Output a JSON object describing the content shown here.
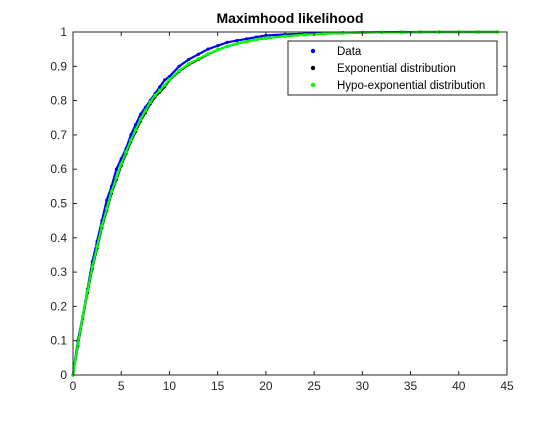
{
  "chart_data": {
    "type": "line",
    "title": "Maximhood likelihood",
    "xlabel": "",
    "ylabel": "",
    "xlim": [
      0,
      45
    ],
    "ylim": [
      0,
      1
    ],
    "x_ticks": [
      0,
      5,
      10,
      15,
      20,
      25,
      30,
      35,
      40,
      45
    ],
    "y_ticks": [
      0,
      0.1,
      0.2,
      0.3,
      0.4,
      0.5,
      0.6,
      0.7,
      0.8,
      0.9,
      1
    ],
    "x_tick_labels": [
      "0",
      "5",
      "10",
      "15",
      "20",
      "25",
      "30",
      "35",
      "40",
      "45"
    ],
    "y_tick_labels": [
      "0",
      "0.1",
      "0.2",
      "0.3",
      "0.4",
      "0.5",
      "0.6",
      "0.7",
      "0.8",
      "0.9",
      "1"
    ],
    "grid": false,
    "legend_position": "top-right",
    "series": [
      {
        "name": "Data",
        "color": "#0000ff",
        "marker": "dot",
        "x": [
          0,
          0.5,
          1,
          1.5,
          2,
          2.5,
          3,
          3.5,
          4,
          4.5,
          5,
          5.5,
          6,
          6.5,
          7,
          7.5,
          8,
          8.5,
          9,
          9.5,
          10,
          11,
          12,
          13,
          14,
          15,
          16,
          17,
          18,
          19,
          20,
          22,
          24,
          26,
          28,
          30,
          32,
          34,
          36,
          38,
          40,
          42,
          44
        ],
        "y": [
          0,
          0.1,
          0.17,
          0.25,
          0.33,
          0.39,
          0.45,
          0.51,
          0.55,
          0.6,
          0.63,
          0.66,
          0.7,
          0.73,
          0.76,
          0.78,
          0.8,
          0.82,
          0.84,
          0.86,
          0.87,
          0.9,
          0.92,
          0.935,
          0.95,
          0.96,
          0.97,
          0.975,
          0.98,
          0.985,
          0.99,
          0.993,
          0.995,
          0.997,
          0.998,
          0.999,
          0.999,
          1,
          1,
          1,
          1,
          1,
          1
        ]
      },
      {
        "name": "Exponential distribution",
        "color": "#000000",
        "marker": "dot",
        "x": [
          0,
          0.5,
          1,
          1.5,
          2,
          2.5,
          3,
          3.5,
          4,
          4.5,
          5,
          5.5,
          6,
          6.5,
          7,
          7.5,
          8,
          8.5,
          9,
          9.5,
          10,
          11,
          12,
          13,
          14,
          15,
          16,
          17,
          18,
          19,
          20,
          22,
          24,
          26,
          28,
          30,
          32,
          34,
          36,
          38,
          40,
          42,
          44
        ],
        "y": [
          0,
          0.085,
          0.165,
          0.24,
          0.31,
          0.37,
          0.43,
          0.48,
          0.53,
          0.57,
          0.61,
          0.645,
          0.68,
          0.71,
          0.74,
          0.765,
          0.79,
          0.81,
          0.825,
          0.84,
          0.86,
          0.885,
          0.905,
          0.92,
          0.935,
          0.948,
          0.958,
          0.966,
          0.972,
          0.978,
          0.982,
          0.988,
          0.992,
          0.995,
          0.997,
          0.998,
          0.999,
          0.999,
          1,
          1,
          1,
          1,
          1
        ]
      },
      {
        "name": "Hypo-exponential distribution",
        "color": "#00ff00",
        "marker": "dot",
        "x": [
          0,
          0.5,
          1,
          1.5,
          2,
          2.5,
          3,
          3.5,
          4,
          4.5,
          5,
          5.5,
          6,
          6.5,
          7,
          7.5,
          8,
          8.5,
          9,
          9.5,
          10,
          11,
          12,
          13,
          14,
          15,
          16,
          17,
          18,
          19,
          20,
          22,
          24,
          26,
          28,
          30,
          32,
          34,
          36,
          38,
          40,
          42,
          44
        ],
        "y": [
          0,
          0.09,
          0.17,
          0.245,
          0.315,
          0.375,
          0.435,
          0.485,
          0.535,
          0.575,
          0.615,
          0.65,
          0.685,
          0.715,
          0.745,
          0.77,
          0.795,
          0.815,
          0.83,
          0.845,
          0.862,
          0.887,
          0.907,
          0.922,
          0.936,
          0.948,
          0.958,
          0.966,
          0.972,
          0.978,
          0.982,
          0.988,
          0.992,
          0.995,
          0.997,
          0.998,
          0.999,
          0.999,
          1,
          1,
          1,
          1,
          1
        ]
      }
    ]
  }
}
